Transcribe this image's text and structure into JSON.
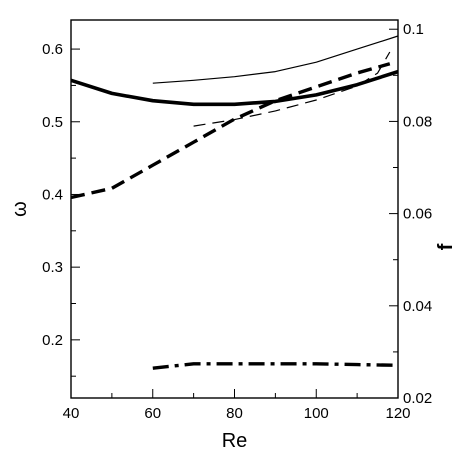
{
  "chart_data": {
    "type": "line",
    "title": "",
    "xlabel": "Re",
    "ylabel_left": "ω",
    "ylabel_right": "f",
    "xlim": [
      40,
      120
    ],
    "ylim_left": [
      0.12,
      0.64
    ],
    "ylim_right": [
      0.02,
      0.102
    ],
    "xticks": [
      40,
      60,
      80,
      100,
      120
    ],
    "yticks_left": [
      0.2,
      0.3,
      0.4,
      0.5,
      0.6
    ],
    "yticks_right": [
      0.02,
      0.04,
      0.06,
      0.08,
      0.1
    ],
    "x_tick_labels": [
      "40",
      "60",
      "80",
      "100",
      "120"
    ],
    "yleft_tick_labels": [
      "0.2",
      "0.3",
      "0.4",
      "0.5",
      "0.6"
    ],
    "yright_tick_labels": [
      "0.02",
      "0.04",
      "0.06",
      "0.08",
      "0.1"
    ],
    "grid": false,
    "legend": "none",
    "series": [
      {
        "axis": "left",
        "style": "thick-solid",
        "x": [
          40,
          50,
          60,
          70,
          80,
          90,
          100,
          110,
          120
        ],
        "y": [
          0.557,
          0.539,
          0.529,
          0.524,
          0.524,
          0.528,
          0.537,
          0.551,
          0.569
        ]
      },
      {
        "axis": "left",
        "style": "thin-solid",
        "x": [
          60,
          70,
          80,
          90,
          100,
          110,
          120
        ],
        "y": [
          0.553,
          0.557,
          0.562,
          0.569,
          0.582,
          0.6,
          0.618
        ]
      },
      {
        "axis": "right",
        "style": "thick-dashed",
        "x": [
          40,
          50,
          60,
          70,
          80,
          90,
          100,
          110,
          118
        ],
        "y": [
          0.0635,
          0.0655,
          0.0705,
          0.0755,
          0.0805,
          0.0845,
          0.0875,
          0.0905,
          0.0925
        ]
      },
      {
        "axis": "left",
        "style": "thin-dashed",
        "x": [
          70,
          80,
          90,
          100,
          110,
          115,
          118
        ],
        "y": [
          0.494,
          0.503,
          0.515,
          0.53,
          0.549,
          0.567,
          0.596
        ]
      },
      {
        "axis": "left",
        "style": "dash-dot",
        "x": [
          60,
          65,
          70,
          80,
          90,
          100,
          110,
          120
        ],
        "y": [
          0.161,
          0.164,
          0.167,
          0.167,
          0.167,
          0.167,
          0.166,
          0.165
        ]
      }
    ]
  }
}
